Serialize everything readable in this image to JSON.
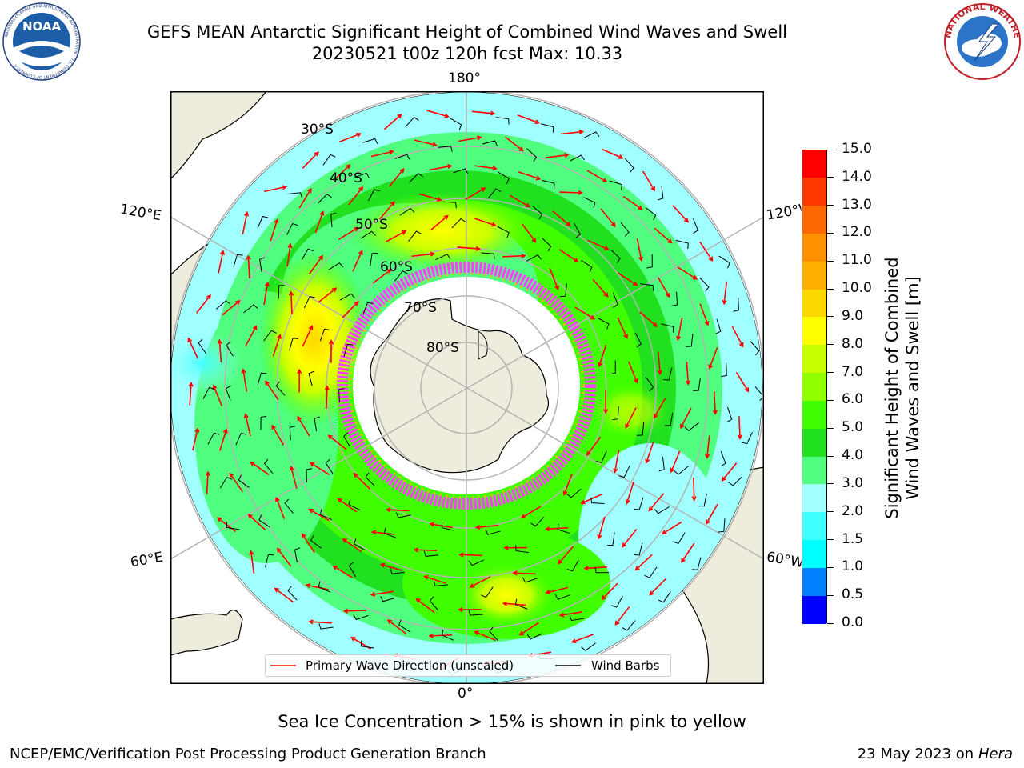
{
  "header": {
    "title_line1": "GEFS MEAN Antarctic Significant Height of Combined Wind Waves and Swell",
    "title_line2": "20230521 t00z 120h fcst   Max: 10.33"
  },
  "logos": {
    "noaa": "NOAA",
    "noaa_ring": "NATIONAL OCEANIC AND ATMOSPHERIC ADMINISTRATION · U.S. DEPARTMENT OF COMMERCE",
    "nws_ring": "NATIONAL WEATHER SERVICE"
  },
  "map": {
    "projection": "south-polar-stereographic",
    "longitude_labels": {
      "top": "180°",
      "bottom": "0°",
      "upper_left": "120°E",
      "lower_left": "60°E",
      "upper_right": "120°W",
      "lower_right": "60°W"
    },
    "latitude_labels": [
      "30°S",
      "40°S",
      "50°S",
      "60°S",
      "70°S",
      "80°S"
    ],
    "sea_ice_note": "Sea Ice Concentration > 15% is shown in pink to yellow"
  },
  "colorbar": {
    "label_line1": "Significant Height of Combined",
    "label_line2": "Wind Waves and Swell [m]",
    "ticks": [
      "0.0",
      "0.5",
      "1.0",
      "1.5",
      "2.0",
      "3.0",
      "4.0",
      "5.0",
      "6.0",
      "7.0",
      "8.0",
      "9.0",
      "10.0",
      "11.0",
      "12.0",
      "13.0",
      "14.0",
      "15.0"
    ],
    "colors": [
      "#0000ff",
      "#0080ff",
      "#00ffff",
      "#40ffff",
      "#a0ffff",
      "#50ff80",
      "#20e020",
      "#40ff00",
      "#90ff00",
      "#c8ff00",
      "#ffff00",
      "#ffd700",
      "#ffb000",
      "#ff9000",
      "#ff6800",
      "#ff3800",
      "#ff0000"
    ]
  },
  "legend": {
    "wave_direction": "Primary Wave Direction (unscaled)",
    "wind_barbs": "Wind Barbs",
    "wave_color": "#ff0000",
    "barb_color": "#000000"
  },
  "footer": {
    "credit": "NCEP/EMC/Verification Post Processing Product Generation Branch",
    "date": "23 May 2023 on",
    "machine": "Hera"
  }
}
